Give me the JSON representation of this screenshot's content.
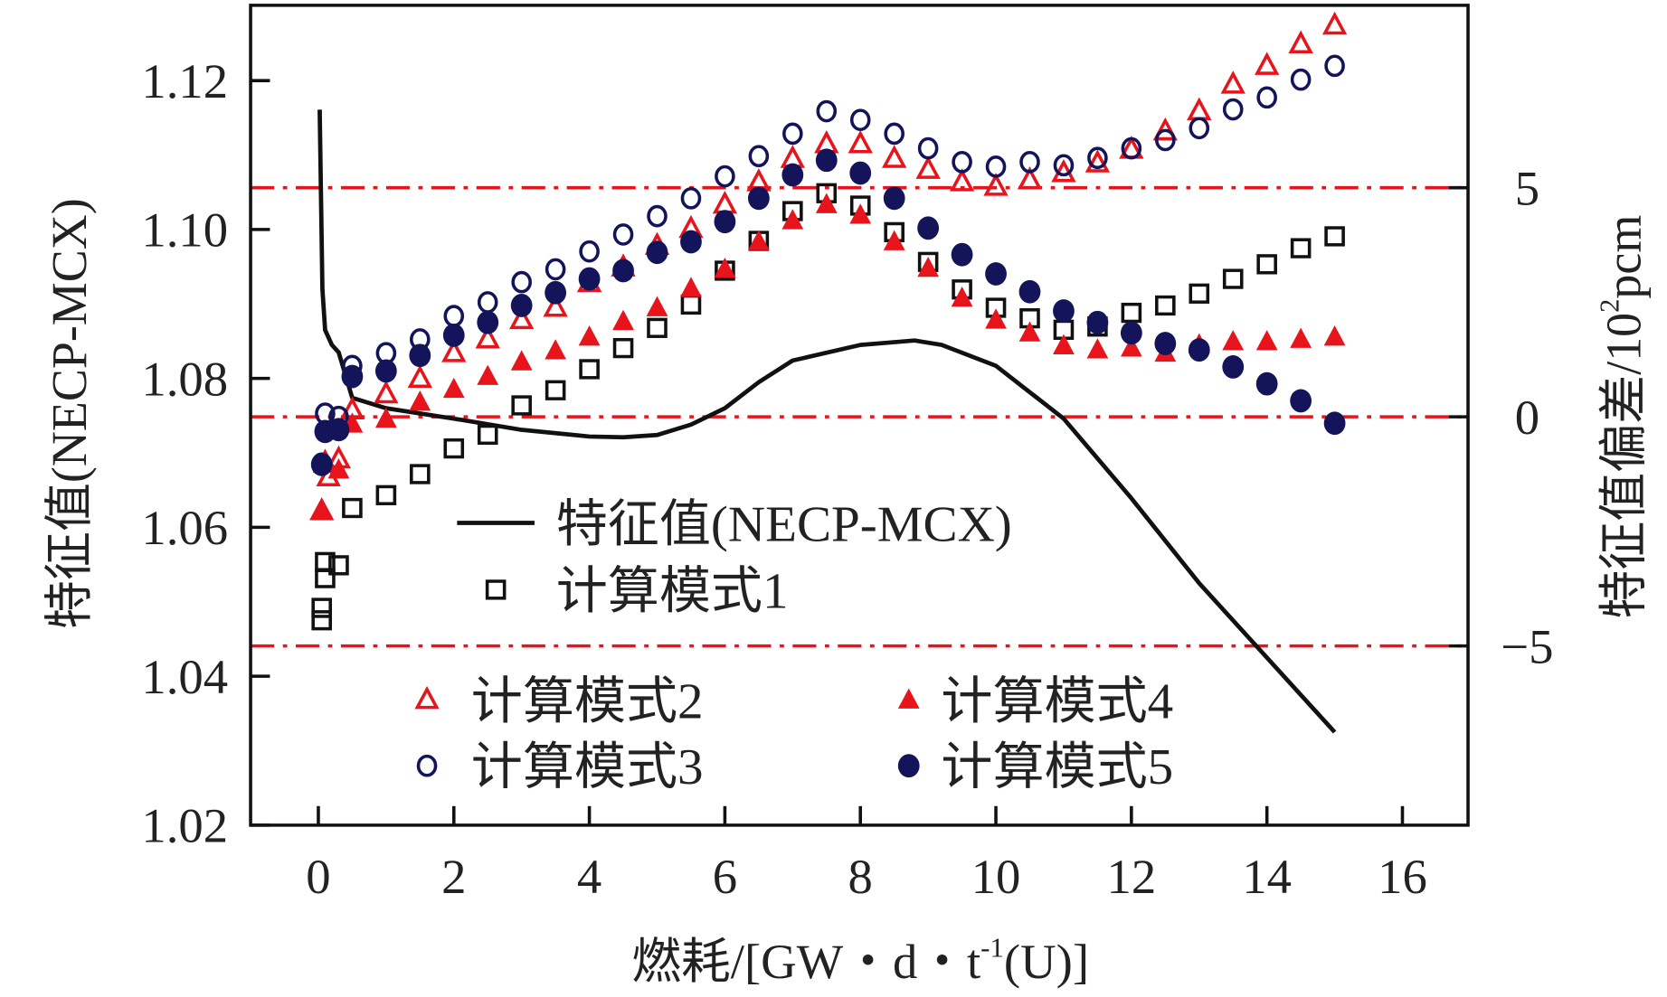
{
  "chart_data": {
    "type": "scatter",
    "xlabel": "燃耗/[GW・d・t⁻¹(U)]",
    "xlabel_parts": {
      "main": "燃耗/[GW・d・t",
      "sup": "-1",
      "tail": "(U)]"
    },
    "ylabel": "特征值(NECP-MCX)",
    "y2label": "特征值偏差/10²pcm",
    "y2label_parts": {
      "main": "特征值偏差/10",
      "sup": "2",
      "tail": "pcm"
    },
    "xlim": [
      -1,
      17
    ],
    "ylim": [
      1.02,
      1.13
    ],
    "y2lim": [
      -8.7,
      9.0
    ],
    "xticks": [
      0,
      2,
      4,
      6,
      8,
      10,
      12,
      14,
      16
    ],
    "yticks": [
      1.02,
      1.04,
      1.06,
      1.08,
      1.1,
      1.12
    ],
    "ytick_labels": [
      "1.02",
      "1.04",
      "1.06",
      "1.08",
      "1.10",
      "1.12"
    ],
    "y2ticks": [
      -5,
      0,
      5
    ],
    "y2tick_labels": [
      "−5",
      "0",
      "5"
    ],
    "reference_lines_y2": [
      5,
      0,
      -5
    ],
    "colors": {
      "red": "#e8141c",
      "navy": "#14145a",
      "black": "#111111"
    },
    "line": {
      "name": "特征值(NECP-MCX)",
      "axis": "left",
      "x": [
        0.02,
        0.04,
        0.06,
        0.1,
        0.2,
        0.3,
        0.5,
        1,
        2,
        3,
        4,
        4.5,
        5,
        5.5,
        6,
        6.5,
        7,
        8,
        8.8,
        9.2,
        10,
        11,
        12,
        13,
        14,
        15
      ],
      "y": [
        1.1161,
        1.104,
        1.092,
        1.0865,
        1.0845,
        1.0835,
        1.0774,
        1.076,
        1.0746,
        1.0731,
        1.0722,
        1.0721,
        1.0724,
        1.0738,
        1.076,
        1.0795,
        1.0824,
        1.0845,
        1.0851,
        1.0845,
        1.0817,
        1.0746,
        1.0639,
        1.0525,
        1.0425,
        1.0325
      ]
    },
    "series": [
      {
        "name": "计算模式1",
        "marker": "square-open",
        "axis": "right",
        "x": [
          0.05,
          0.05,
          0.1,
          0.1,
          0.3,
          0.5,
          1,
          1.5,
          2,
          2.5,
          3,
          3.5,
          4,
          4.5,
          5,
          5.5,
          6,
          6.5,
          7,
          7.5,
          8,
          8.5,
          9,
          9.5,
          10,
          10.5,
          11,
          11.5,
          12,
          12.5,
          13,
          13.5,
          14,
          14.5,
          15
        ],
        "y": [
          -4.44,
          -4.17,
          -3.52,
          -3.17,
          -3.24,
          -1.99,
          -1.71,
          -1.25,
          -0.69,
          -0.39,
          0.25,
          0.58,
          1.04,
          1.5,
          1.94,
          2.45,
          3.19,
          3.84,
          4.49,
          4.88,
          4.61,
          4.03,
          3.38,
          2.78,
          2.38,
          2.15,
          1.9,
          1.97,
          2.27,
          2.43,
          2.69,
          3.01,
          3.33,
          3.68,
          3.94
        ]
      },
      {
        "name": "计算模式2",
        "marker": "triangle-open",
        "axis": "right",
        "x": [
          0.05,
          0.1,
          0.15,
          0.3,
          0.5,
          1,
          1.5,
          2,
          2.5,
          3,
          3.5,
          4,
          4.5,
          5,
          5.5,
          6,
          6.5,
          7,
          7.5,
          8,
          8.5,
          9,
          9.5,
          10,
          10.5,
          11,
          11.5,
          12,
          12.5,
          13,
          13.5,
          14,
          14.5,
          15
        ],
        "y": [
          -2.06,
          -1.02,
          -1.32,
          -0.93,
          0.14,
          0.49,
          0.83,
          1.39,
          1.69,
          2.11,
          2.38,
          2.92,
          3.26,
          3.73,
          4.1,
          4.63,
          5.12,
          5.63,
          5.95,
          5.95,
          5.63,
          5.39,
          5.12,
          5.02,
          5.16,
          5.32,
          5.53,
          5.83,
          6.23,
          6.67,
          7.25,
          7.66,
          8.13,
          8.54
        ]
      },
      {
        "name": "计算模式3",
        "marker": "circle-open",
        "axis": "right",
        "x": [
          0.05,
          0.1,
          0.3,
          0.5,
          1,
          1.5,
          2,
          2.5,
          3,
          3.5,
          4,
          4.5,
          5,
          5.5,
          6,
          6.5,
          7,
          7.5,
          8,
          8.5,
          9,
          9.5,
          10,
          10.5,
          11,
          11.5,
          12,
          12.5,
          13,
          13.5,
          14,
          14.5,
          15
        ],
        "y": [
          -1.02,
          0.07,
          0,
          1.11,
          1.39,
          1.69,
          2.2,
          2.5,
          2.94,
          3.22,
          3.61,
          3.98,
          4.38,
          4.77,
          5.25,
          5.69,
          6.18,
          6.67,
          6.48,
          6.18,
          5.86,
          5.56,
          5.46,
          5.56,
          5.49,
          5.65,
          5.86,
          6.04,
          6.3,
          6.71,
          6.97,
          7.36,
          7.66
        ]
      },
      {
        "name": "计算模式4",
        "marker": "triangle-filled",
        "axis": "right",
        "x": [
          0.05,
          0.1,
          0.3,
          0.5,
          1,
          1.5,
          2,
          2.5,
          3,
          3.5,
          4,
          4.5,
          5,
          5.5,
          6,
          6.5,
          7,
          7.5,
          8,
          8.5,
          9,
          9.5,
          10,
          10.5,
          11,
          11.5,
          12,
          12.5,
          13,
          13.5,
          14,
          14.5,
          15
        ],
        "y": [
          -2.06,
          -0.95,
          -1.16,
          -0.16,
          -0.05,
          0.32,
          0.6,
          0.88,
          1.2,
          1.44,
          1.74,
          2.08,
          2.38,
          2.8,
          3.22,
          3.82,
          4.28,
          4.63,
          4.4,
          3.82,
          3.24,
          2.59,
          2.11,
          1.83,
          1.55,
          1.46,
          1.5,
          1.39,
          1.57,
          1.64,
          1.64,
          1.69,
          1.74
        ]
      },
      {
        "name": "计算模式5",
        "marker": "circle-filled",
        "axis": "right",
        "x": [
          0.05,
          0.1,
          0.3,
          0.5,
          1,
          1.5,
          2,
          2.5,
          3,
          3.5,
          4,
          4.5,
          5,
          5.5,
          6,
          6.5,
          7,
          7.5,
          8,
          8.5,
          9,
          9.5,
          10,
          10.5,
          11,
          11.5,
          12,
          12.5,
          13,
          13.5,
          14,
          14.5,
          15
        ],
        "y": [
          -1.04,
          -0.32,
          -0.28,
          0.88,
          1.0,
          1.34,
          1.78,
          2.06,
          2.43,
          2.71,
          3.01,
          3.19,
          3.59,
          3.82,
          4.26,
          4.77,
          5.28,
          5.6,
          5.32,
          4.77,
          4.12,
          3.54,
          3.12,
          2.73,
          2.31,
          2.06,
          1.83,
          1.6,
          1.46,
          1.09,
          0.72,
          0.35,
          -0.14
        ]
      }
    ],
    "legend": [
      "特征值(NECP-MCX)",
      "计算模式1",
      "计算模式2",
      "计算模式4",
      "计算模式3",
      "计算模式5"
    ],
    "legend_placement": "center-left, inside plot",
    "grid": false
  }
}
